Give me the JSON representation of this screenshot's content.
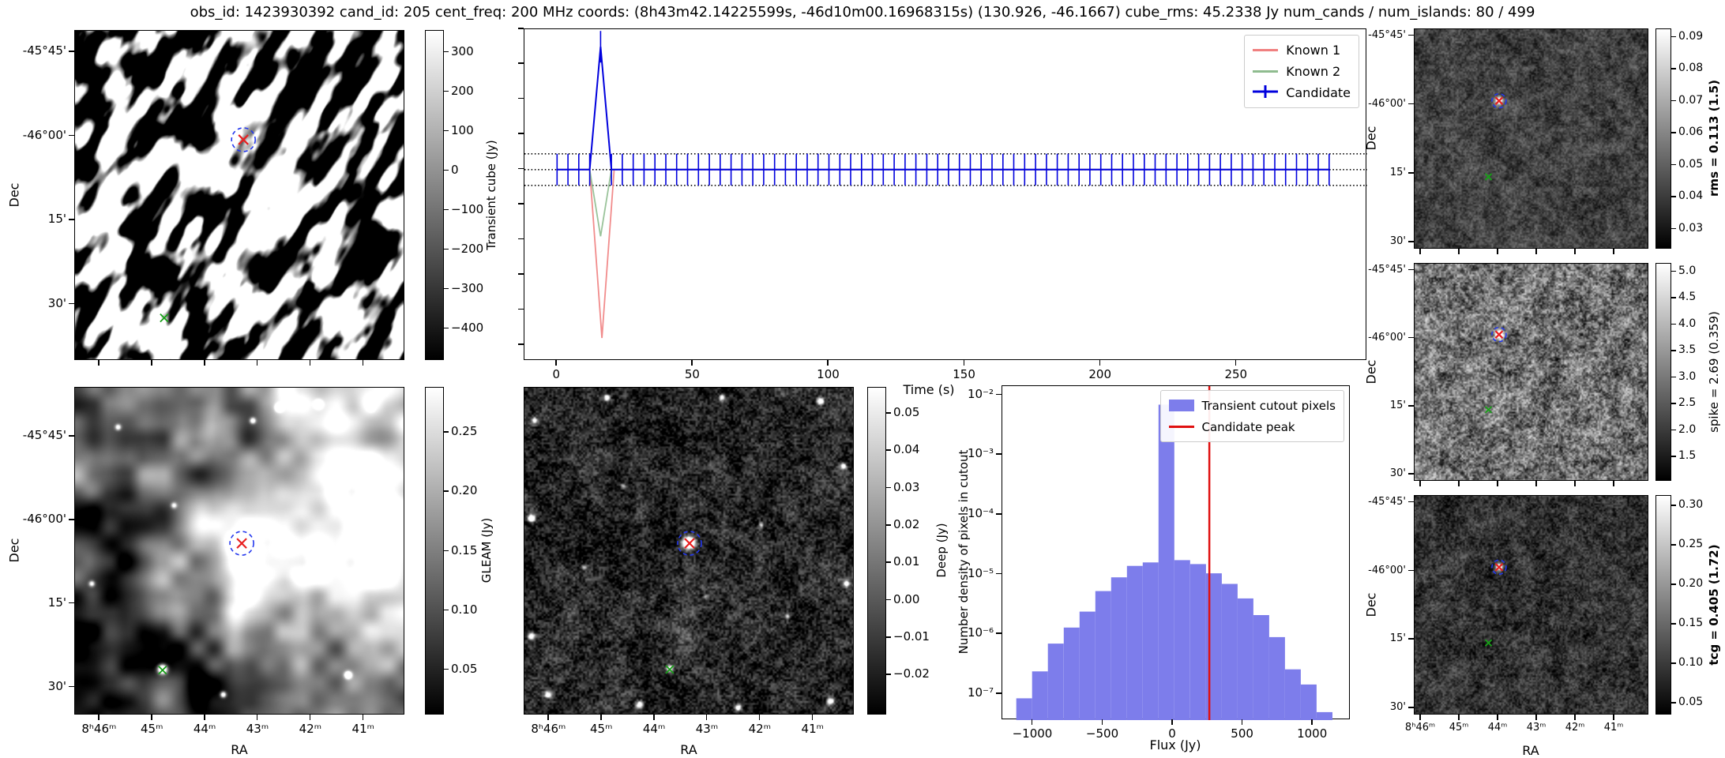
{
  "title": "obs_id: 1423930392 cand_id: 205 cent_freq: 200 MHz coords: (8h43m42.14225599s, -46d10m00.16968315s) (130.926, -46.1667) cube_rms: 45.2338 Jy num_cands / num_islands: 80 / 499",
  "labels": {
    "ra": "RA",
    "dec": "Dec",
    "time": "Time (s)",
    "flux": "Flux (Jy)",
    "hist_y": "Number density of pixels in cutout"
  },
  "dec_ticks": [
    "-45°45'",
    "-46°00'",
    "15'",
    "30'"
  ],
  "ra_ticks": [
    "8ʰ46ᵐ",
    "45ᵐ",
    "44ᵐ",
    "43ᵐ",
    "42ᵐ",
    "41ᵐ"
  ],
  "colorbars": {
    "transient": {
      "label": "Transient cube (Jy)",
      "bold": false,
      "vmax": 355,
      "vmin": -480,
      "tick_values": [
        300,
        200,
        100,
        0,
        -100,
        -200,
        -300,
        -400
      ],
      "tick_labels": [
        "300",
        "200",
        "100",
        "0",
        "−100",
        "−200",
        "−300",
        "−400"
      ]
    },
    "gleam": {
      "label": "GLEAM (Jy)",
      "bold": false,
      "vmax": 0.288,
      "vmin": 0.012,
      "tick_values": [
        0.25,
        0.2,
        0.15,
        0.1,
        0.05
      ],
      "tick_labels": [
        "0.25",
        "0.20",
        "0.15",
        "0.10",
        "0.05"
      ]
    },
    "deep": {
      "label": "Deep (Jy)",
      "bold": false,
      "vmax": 0.057,
      "vmin": -0.0307,
      "tick_values": [
        0.05,
        0.04,
        0.03,
        0.02,
        0.01,
        0.0,
        -0.01,
        -0.02
      ],
      "tick_labels": [
        "0.05",
        "0.04",
        "0.03",
        "0.02",
        "0.01",
        "0.00",
        "−0.01",
        "−0.02"
      ]
    },
    "rms": {
      "label": "rms = 0.113 (1.5)",
      "bold": true,
      "vmax": 0.0927,
      "vmin": 0.0238,
      "tick_values": [
        0.09,
        0.08,
        0.07,
        0.06,
        0.05,
        0.04,
        0.03
      ],
      "tick_labels": [
        "0.09",
        "0.08",
        "0.07",
        "0.06",
        "0.05",
        "0.04",
        "0.03"
      ]
    },
    "spike": {
      "label": "spike = 2.69 (0.359)",
      "bold": false,
      "vmax": 5.16,
      "vmin": 1.04,
      "tick_values": [
        5.0,
        4.5,
        4.0,
        3.5,
        3.0,
        2.5,
        2.0,
        1.5
      ],
      "tick_labels": [
        "5.0",
        "4.5",
        "4.0",
        "3.5",
        "3.0",
        "2.5",
        "2.0",
        "1.5"
      ]
    },
    "tcg": {
      "label": "tcg = 0.405 (1.72)",
      "bold": true,
      "vmax": 0.313,
      "vmin": 0.035,
      "tick_values": [
        0.3,
        0.25,
        0.2,
        0.15,
        0.1,
        0.05
      ],
      "tick_labels": [
        "0.30",
        "0.25",
        "0.20",
        "0.15",
        "0.10",
        "0.05"
      ]
    }
  },
  "lightcurve_legend": [
    {
      "label": "Known 1",
      "color": "#f08080",
      "type": "line"
    },
    {
      "label": "Known 2",
      "color": "#8fbc8f",
      "type": "line"
    },
    {
      "label": "Candidate",
      "color": "#0000dd",
      "type": "errorbar"
    }
  ],
  "histogram_legend": [
    {
      "label": "Transient cutout pixels",
      "color": "#7d7deb",
      "type": "patch"
    },
    {
      "label": "Candidate peak",
      "color": "#e01010",
      "type": "line"
    }
  ],
  "lightcurve_axis": {
    "x_tick_values": [
      0,
      50,
      100,
      150,
      200,
      250
    ],
    "x_tick_labels": [
      "0",
      "50",
      "100",
      "150",
      "200",
      "250"
    ]
  },
  "histogram_axis": {
    "y_tick_values": [
      0.01,
      0.001,
      0.0001,
      1e-05,
      1e-06,
      1e-07
    ],
    "y_tick_labels": [
      "10⁻²",
      "10⁻³",
      "10⁻⁴",
      "10⁻⁵",
      "10⁻⁶",
      "10⁻⁷"
    ],
    "x_tick_values": [
      -1000,
      -500,
      0,
      500,
      1000
    ],
    "x_tick_labels": [
      "−1000",
      "−500",
      "0",
      "500",
      "1000"
    ]
  },
  "markers": {
    "transient_cube": {
      "candidate": [
        0.51,
        0.33
      ],
      "known": [
        0.27,
        0.87
      ]
    },
    "gleam": {
      "candidate": [
        0.505,
        0.475
      ],
      "known": [
        0.265,
        0.862
      ]
    },
    "deep": {
      "candidate": [
        0.5,
        0.475
      ],
      "known": [
        0.44,
        0.86
      ]
    },
    "rms": {
      "candidate": [
        0.36,
        0.325
      ],
      "known": [
        0.315,
        0.67
      ]
    },
    "spike": {
      "candidate": [
        0.36,
        0.325
      ],
      "known": [
        0.315,
        0.67
      ]
    },
    "tcg": {
      "candidate": [
        0.36,
        0.325
      ],
      "known": [
        0.315,
        0.67
      ]
    }
  },
  "colors": {
    "candidate_marker": "#e82020",
    "island_circle": "#2337ee",
    "known_marker": "#18a018",
    "hist_bar": "#7d7deb",
    "peak_line": "#e01010",
    "known1_line": "#f08080",
    "known2_line": "#8fbc8f",
    "candidate_line": "#0000dd",
    "dotted_line": "#000000"
  },
  "chart_data": [
    {
      "type": "line",
      "title": "",
      "xlabel": "Time (s)",
      "ylabel": "",
      "xlim": [
        -12,
        298
      ],
      "ylim": [
        -545,
        400
      ],
      "x_ticks": [
        0,
        50,
        100,
        150,
        200,
        250
      ],
      "legend_position": "upper right",
      "hlines": {
        "y": [
          45,
          0,
          -45
        ],
        "style": "dotted",
        "color": "#000000"
      },
      "series": [
        {
          "name": "Known 1",
          "color": "#f08080",
          "x": [
            0,
            12,
            16.5,
            21,
            284
          ],
          "y": [
            0,
            0,
            -480,
            0,
            0
          ]
        },
        {
          "name": "Known 2",
          "color": "#8fbc8f",
          "x": [
            0,
            12,
            16,
            20,
            284
          ],
          "y": [
            0,
            0,
            -190,
            0,
            0
          ]
        },
        {
          "name": "Candidate",
          "color": "#0000dd",
          "style": "errorbar",
          "t_start": 0,
          "t_end": 284,
          "t_step": 4,
          "baseline_jy": 0,
          "yerr_jy": 45,
          "peak": {
            "t": 16,
            "flux_jy": 350
          }
        }
      ]
    },
    {
      "type": "bar",
      "title": "",
      "xlabel": "Flux (Jy)",
      "ylabel": "Number density of pixels in cutout",
      "yscale": "log",
      "xlim": [
        -1220,
        1270
      ],
      "ylog_top": -1.845,
      "ylog_bottom": -7.435,
      "bin_start": -1120,
      "bin_width": 113,
      "values": [
        8.5e-08,
        2.4e-07,
        7e-07,
        1.3e-06,
        2.4e-06,
        5.3e-06,
        9e-06,
        1.4e-05,
        1.6e-05,
        0.007,
        1.75e-05,
        1.5e-05,
        1.05e-05,
        7e-06,
        4e-06,
        2.1e-06,
        9e-07,
        2.6e-07,
        1.45e-07,
        5e-08
      ],
      "vline": {
        "x": 260,
        "label": "Candidate peak",
        "color": "#e01010"
      },
      "legend": [
        "Transient cutout pixels",
        "Candidate peak"
      ]
    }
  ]
}
